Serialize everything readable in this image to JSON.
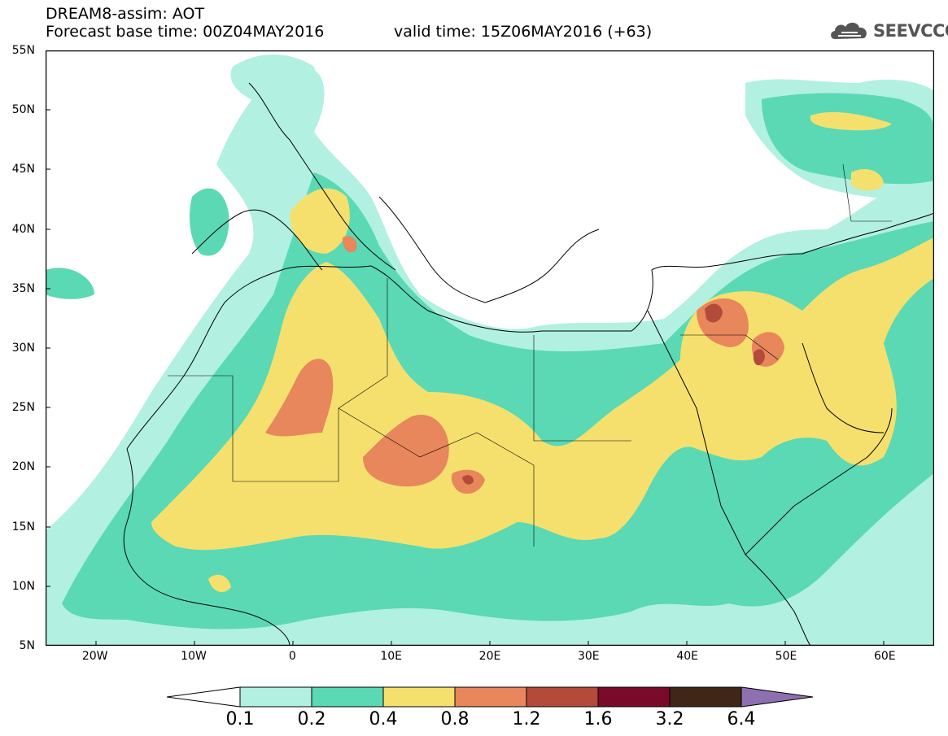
{
  "title": {
    "line1": "DREAM8-assim: AOT",
    "line2": "Forecast base time: 00Z04MAY2016",
    "valid": "valid time: 15Z06MAY2016 (+63)"
  },
  "logo": {
    "text": "SEEVCCC",
    "icon": "cloud-logo-icon"
  },
  "map": {
    "lon_range": [
      -25,
      65
    ],
    "lat_range": [
      5,
      55
    ],
    "lat_ticks": [
      "55N",
      "50N",
      "45N",
      "40N",
      "35N",
      "30N",
      "25N",
      "20N",
      "15N",
      "10N",
      "5N"
    ],
    "lon_ticks": [
      "20W",
      "10W",
      "0",
      "10E",
      "20E",
      "30E",
      "40E",
      "50E",
      "60E"
    ]
  },
  "colorbar": {
    "labels": [
      "0.1",
      "0.2",
      "0.4",
      "0.8",
      "1.2",
      "1.6",
      "3.2",
      "6.4"
    ],
    "colors": [
      "#ffffff",
      "#b2f0e2",
      "#5ad9b4",
      "#f5e06e",
      "#e8865c",
      "#b34a3a",
      "#7a0a2a",
      "#3f2617",
      "#8e6fb0"
    ]
  }
}
